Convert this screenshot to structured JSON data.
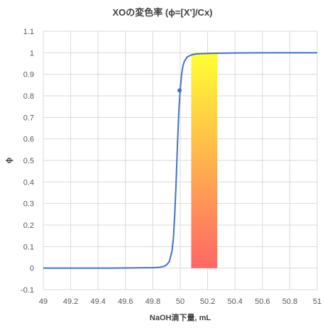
{
  "chart_data": {
    "type": "line",
    "title": "XOの変色率 (ϕ=[X']/Cx)",
    "xlabel": "NaOH滴下量, mL",
    "ylabel": "ϕ",
    "xlim": [
      49,
      51
    ],
    "ylim": [
      -0.1,
      1.1
    ],
    "x_ticks": [
      "49",
      "49.2",
      "49.4",
      "49.6",
      "49.8",
      "50",
      "50.2",
      "50.4",
      "50.6",
      "50.8",
      "51"
    ],
    "y_ticks": [
      "-0.1",
      "0",
      "0.1",
      "0.2",
      "0.3",
      "0.4",
      "0.5",
      "0.6",
      "0.7",
      "0.8",
      "0.9",
      "1",
      "1.1"
    ],
    "grid": true,
    "series": [
      {
        "color": "#4472C4",
        "x": [
          49,
          49.5,
          49.8,
          49.85,
          49.88,
          49.9,
          49.92,
          49.94,
          49.95,
          49.96,
          49.97,
          49.98,
          49.99,
          50,
          50.01,
          50.02,
          50.03,
          50.05,
          50.08,
          50.12,
          50.2,
          50.4,
          50.6,
          51
        ],
        "y": [
          0,
          0,
          0.002,
          0.004,
          0.008,
          0.015,
          0.03,
          0.08,
          0.14,
          0.25,
          0.4,
          0.58,
          0.73,
          0.83,
          0.9,
          0.94,
          0.96,
          0.98,
          0.99,
          0.995,
          0.997,
          0.999,
          1,
          1
        ]
      }
    ],
    "marker": {
      "x": 49.995,
      "y": 0.825,
      "color": "#4472C4"
    },
    "highlight_band": {
      "x_start": 50.08,
      "x_end": 50.27,
      "y_start": 0,
      "y_end": 1,
      "color_top": "#FFFF33",
      "color_bottom": "#FF6666"
    }
  }
}
